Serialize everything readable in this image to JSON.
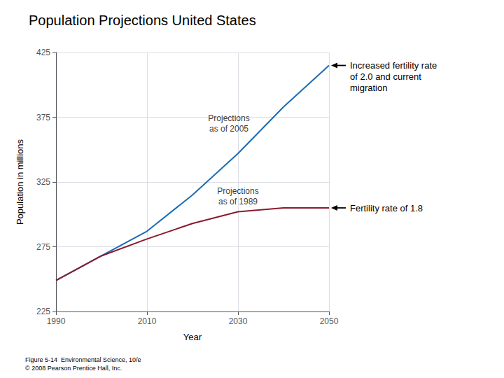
{
  "chart_data": {
    "type": "line",
    "title": "Population Projections United States",
    "xlabel": "Year",
    "ylabel": "Population in millions",
    "x": [
      1990,
      2000,
      2010,
      2020,
      2030,
      2040,
      2050
    ],
    "series": [
      {
        "color": "#1a6cb5",
        "values": [
          249,
          268,
          287,
          315,
          347,
          383,
          415
        ]
      },
      {
        "color": "#8b1a2e",
        "values": [
          249,
          268,
          281,
          293,
          302,
          305,
          305
        ]
      }
    ],
    "xlim": [
      1990,
      2050
    ],
    "ylim": [
      225,
      425
    ],
    "xticks": [
      1990,
      2010,
      2030,
      2050
    ],
    "yticks": [
      225,
      275,
      325,
      375,
      425
    ],
    "grid": true,
    "annotations": [
      {
        "text": "Projections\nas of 2005",
        "x": 2028,
        "y": 370,
        "arrow": false
      },
      {
        "text": "Projections\nas of 1989",
        "x": 2030,
        "y": 314,
        "arrow": false
      },
      {
        "text": "Increased fertility rate\nof 2.0 and current\nmigration",
        "x": 2050,
        "y": 415,
        "arrow": true
      },
      {
        "text": "Fertility rate of 1.8",
        "x": 2050,
        "y": 305,
        "arrow": true
      }
    ],
    "caption": "Figure 5-14  Environmental Science, 10/e\n© 2008 Pearson Prentice Hall, Inc."
  }
}
